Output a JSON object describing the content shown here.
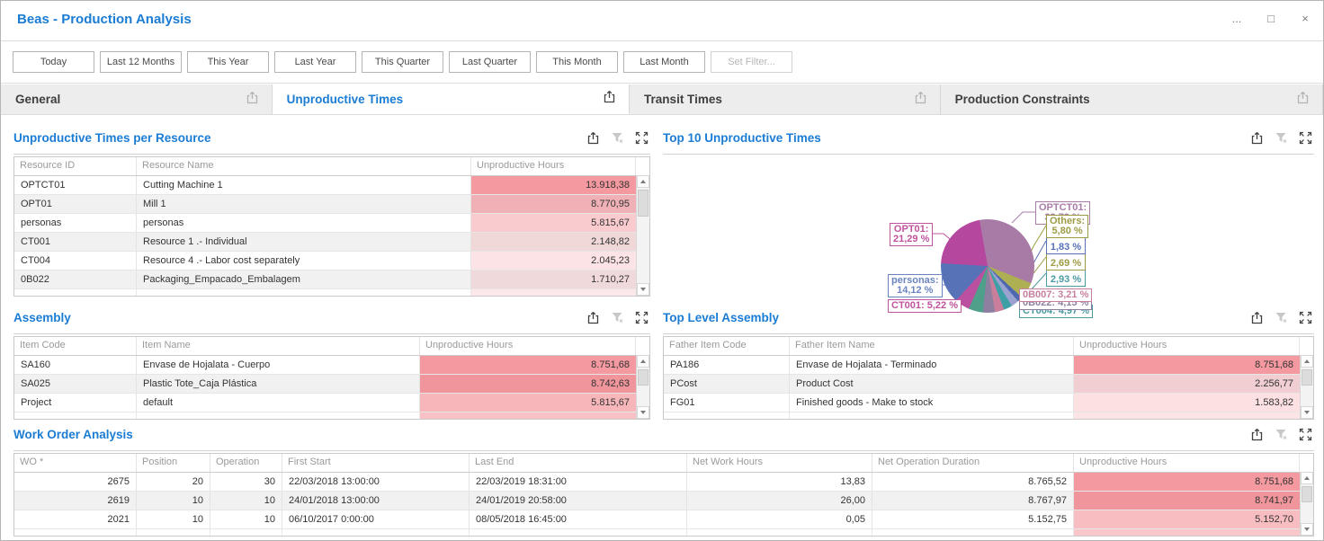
{
  "window": {
    "title": "Beas - Production Analysis",
    "more": "...",
    "maximize": "□",
    "close": "×"
  },
  "filters": {
    "buttons": [
      "Today",
      "Last 12 Months",
      "This Year",
      "Last Year",
      "This Quarter",
      "Last Quarter",
      "This Month",
      "Last Month"
    ],
    "set_filter": "Set Filter..."
  },
  "tabs": [
    {
      "label": "General",
      "active": false
    },
    {
      "label": "Unproductive Times",
      "active": true
    },
    {
      "label": "Transit Times",
      "active": false
    },
    {
      "label": "Production Constraints",
      "active": false
    }
  ],
  "panels": {
    "resource": {
      "title": "Unproductive Times per Resource",
      "columns": [
        "Resource ID",
        "Resource Name",
        "Unproductive Hours"
      ],
      "rows": [
        [
          "OPTCT01",
          "Cutting Machine 1",
          "13.918,38"
        ],
        [
          "OPT01",
          "Mill 1",
          "8.770,95"
        ],
        [
          "personas",
          "personas",
          "5.815,67"
        ],
        [
          "CT001",
          "Resource 1 .- Individual",
          "2.148,82"
        ],
        [
          "CT004",
          "Resource 4 .- Labor cost separately",
          "2.045,23"
        ],
        [
          "0B022",
          "Packaging_Empacado_Embalagem",
          "1.710,27"
        ]
      ]
    },
    "top10": {
      "title": "Top 10 Unproductive Times"
    },
    "assembly": {
      "title": "Assembly",
      "columns": [
        "Item Code",
        "Item Name",
        "Unproductive Hours"
      ],
      "rows": [
        [
          "SA160",
          "Envase de Hojalata - Cuerpo",
          "8.751,68"
        ],
        [
          "SA025",
          "Plastic Tote_Caja Plástica",
          "8.742,63"
        ],
        [
          "Project",
          "default",
          "5.815,67"
        ]
      ]
    },
    "toplevel": {
      "title": "Top Level Assembly",
      "columns": [
        "Father Item Code",
        "Father Item Name",
        "Unproductive Hours"
      ],
      "rows": [
        [
          "PA186",
          "Envase de Hojalata - Terminado",
          "8.751,68"
        ],
        [
          "PCost",
          "Product Cost",
          "2.256,77"
        ],
        [
          "FG01",
          "Finished goods - Make to stock",
          "1.583,82"
        ]
      ]
    },
    "workorder": {
      "title": "Work Order Analysis",
      "columns": [
        "WO *",
        "Position",
        "Operation",
        "First Start",
        "Last End",
        "Net Work Hours",
        "Net Operation Duration",
        "Unproductive Hours"
      ],
      "rows": [
        [
          "2675",
          "20",
          "30",
          "22/03/2018 13:00:00",
          "22/03/2019 18:31:00",
          "13,83",
          "8.765,52",
          "8.751,68"
        ],
        [
          "2619",
          "10",
          "10",
          "24/01/2018 13:00:00",
          "24/01/2019 20:58:00",
          "26,00",
          "8.767,97",
          "8.741,97"
        ],
        [
          "2021",
          "10",
          "10",
          "06/10/2017 0:00:00",
          "08/05/2018 16:45:00",
          "0,05",
          "5.152,75",
          "5.152,70"
        ]
      ]
    }
  },
  "chart_data": {
    "type": "pie",
    "title": "Top 10 Unproductive Times",
    "unit": "%",
    "legend_position": "callouts",
    "slices": [
      {
        "label": "OPTCT01",
        "value": 33.79,
        "color": "#a87ba6"
      },
      {
        "label": "Others",
        "value": 5.8,
        "color": "#aeae52"
      },
      {
        "label": "",
        "value": 1.83,
        "color": "#4d68b0"
      },
      {
        "label": "",
        "value": 2.69,
        "color": "#9aa3d0"
      },
      {
        "label": "",
        "value": 2.93,
        "color": "#3f9fa6"
      },
      {
        "label": "0B007",
        "value": 3.21,
        "color": "#c97f9c"
      },
      {
        "label": "0B022",
        "value": 4.15,
        "color": "#8d7f9f"
      },
      {
        "label": "CT004",
        "value": 4.97,
        "color": "#4ea08a"
      },
      {
        "label": "CT001",
        "value": 5.22,
        "color": "#bb4fa0"
      },
      {
        "label": "personas",
        "value": 14.12,
        "color": "#5872b8"
      },
      {
        "label": "OPT01",
        "value": 21.29,
        "color": "#b5479f"
      }
    ],
    "callouts": [
      {
        "lines": [
          "OPT01:",
          "21,29 %"
        ],
        "color": "#c0539d"
      },
      {
        "lines": [
          "personas:",
          "14,12 %"
        ],
        "color": "#6b84c0"
      },
      {
        "lines": [
          "CT001: 5,22 %"
        ],
        "color": "#c0539d"
      },
      {
        "lines": [
          "OPTCT01:",
          "33,79 %"
        ],
        "color": "#a87ca8"
      },
      {
        "lines": [
          "Others:",
          "5,80 %"
        ],
        "color": "#9c9c44"
      },
      {
        "lines": [
          " ",
          "1,83 %"
        ],
        "color": "#5872b8"
      },
      {
        "lines": [
          " ",
          "2,69 %"
        ],
        "color": "#9c9c44"
      },
      {
        "lines": [
          " ",
          "2,93 %"
        ],
        "color": "#4a9ba1"
      },
      {
        "lines": [
          "0B007: 3,21 %"
        ],
        "color": "#c87f9e"
      },
      {
        "lines": [
          "0B022: 4,15 %"
        ],
        "color": "#8d7f9f"
      },
      {
        "lines": [
          "CT004: 4,97 %"
        ],
        "color": "#4a9ba1"
      }
    ]
  },
  "colors": {
    "accent": "#1b7cd4",
    "heat_base": "#ee6872",
    "tab_bg": "#ededed"
  }
}
